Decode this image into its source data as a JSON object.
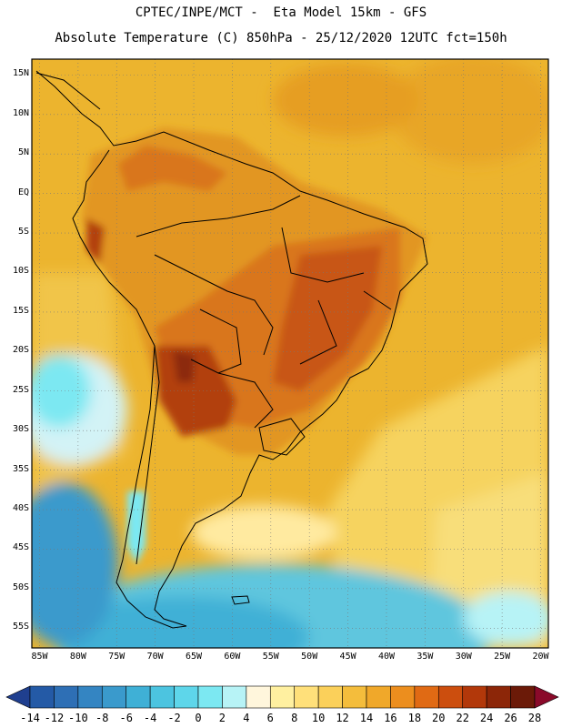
{
  "title_line1": "CPTEC/INPE/MCT -  Eta Model 15km - GFS",
  "title_line2": "Absolute Temperature (C) 850hPa - 25/12/2020 12UTC fct=150h",
  "lat_labels": [
    "15N",
    "10N",
    "5N",
    "EQ",
    "5S",
    "10S",
    "15S",
    "20S",
    "25S",
    "30S",
    "35S",
    "40S",
    "45S",
    "50S",
    "55S"
  ],
  "lon_labels": [
    "85W",
    "80W",
    "75W",
    "70W",
    "65W",
    "60W",
    "55W",
    "50W",
    "45W",
    "40W",
    "35W",
    "30W",
    "25W",
    "20W"
  ],
  "colorbar": {
    "labels": [
      "-14",
      "-12",
      "-10",
      "-8",
      "-6",
      "-4",
      "-2",
      "0",
      "2",
      "4",
      "6",
      "8",
      "10",
      "12",
      "14",
      "16",
      "18",
      "20",
      "22",
      "24",
      "26",
      "28"
    ],
    "colors": [
      "#1f3f8f",
      "#245aa6",
      "#2e6fb5",
      "#3485c2",
      "#3a9acc",
      "#3fb0d6",
      "#4cc4e0",
      "#5ed6ea",
      "#7ce8f2",
      "#b7f3f6",
      "#fff6dc",
      "#fff0a0",
      "#ffe07a",
      "#fbd05a",
      "#f4bd3c",
      "#f0a82a",
      "#ec8e1e",
      "#e06a14",
      "#cc4e0e",
      "#b2380a",
      "#8c2608",
      "#6b1a08",
      "#8a0a2a"
    ]
  },
  "map_fields": {
    "background_color": "#ecb42e",
    "regions": [
      {
        "name": "north-atlantic-warm",
        "color": "#e8a626"
      },
      {
        "name": "amazon-hot-core",
        "color": "#d9761c"
      },
      {
        "name": "brazil-highlands-hot",
        "color": "#c85616"
      },
      {
        "name": "chaco-hottest",
        "color": "#b2400e"
      },
      {
        "name": "andes-peak",
        "color": "#8c2a0a"
      },
      {
        "name": "south-atlantic-mild",
        "color": "#f4d25a"
      },
      {
        "name": "patagonia-cool",
        "color": "#ffeaa0"
      },
      {
        "name": "pacific-cold-pool",
        "color": "#d3f3f6"
      },
      {
        "name": "southern-ocean-cold",
        "color": "#5ec6de"
      },
      {
        "name": "drake-cold",
        "color": "#3a9acc"
      }
    ]
  }
}
